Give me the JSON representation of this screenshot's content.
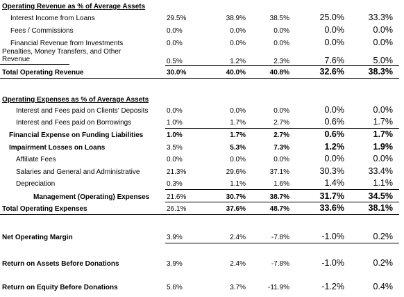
{
  "sections": [
    {
      "header": "Operating Revenue as % of Average Assets",
      "rows": [
        {
          "label": "Interest Income from Loans",
          "values": [
            "29.5%",
            "38.9%",
            "38.5%",
            "25.0%",
            "33.3%"
          ]
        },
        {
          "label": "Fees / Commissions",
          "values": [
            "0.0%",
            "0.0%",
            "0.0%",
            "0.0%",
            "0.0%"
          ]
        },
        {
          "label_lines": [
            "Financial Revenue from Investments",
            "Penalties, Money Transfers, and Other",
            "Revenue"
          ],
          "values": [
            "0.0%",
            "0.0%",
            "0.0%",
            "0.0%",
            "0.0%"
          ],
          "values2": [
            "0.5%",
            "1.2%",
            "2.3%",
            "7.6%",
            "5.0%"
          ]
        },
        {
          "label": "Total Operating Revenue",
          "values": [
            "30.0%",
            "40.0%",
            "40.8%",
            "32.6%",
            "38.3%"
          ]
        }
      ]
    },
    {
      "header": "Operating Expenses as % of Average Assets",
      "rows": [
        {
          "label": "Interest and Fees paid on Clients' Deposits",
          "values": [
            "0.0%",
            "0.0%",
            "0.0%",
            "0.0%",
            "0.0%"
          ]
        },
        {
          "label": "Interest and Fees paid on Borrowings",
          "values": [
            "1.0%",
            "1.7%",
            "2.7%",
            "0.6%",
            "1.7%"
          ]
        },
        {
          "label": "Financial Expense on Funding Liabilities",
          "values": [
            "1.0%",
            "1.7%",
            "2.7%",
            "0.6%",
            "1.7%"
          ]
        },
        {
          "label": "Impairment Losses on Loans",
          "values": [
            "3.5%",
            "5.3%",
            "7.3%",
            "1.2%",
            "1.9%"
          ]
        },
        {
          "label": "Affiliate Fees",
          "values": [
            "0.0%",
            "0.0%",
            "0.0%",
            "0.0%",
            "0.0%"
          ]
        },
        {
          "label": "Salaries and General and Administrative",
          "values": [
            "21.3%",
            "29.6%",
            "37.1%",
            "30.3%",
            "33.4%"
          ]
        },
        {
          "label": "Depreciation",
          "values": [
            "0.3%",
            "1.1%",
            "1.6%",
            "1.4%",
            "1.1%"
          ]
        },
        {
          "label": "Management (Operating) Expenses",
          "values": [
            "21.6%",
            "30.7%",
            "38.7%",
            "31.7%",
            "34.5%"
          ]
        },
        {
          "label": "Total Operating Expenses",
          "values": [
            "26.1%",
            "37.6%",
            "48.7%",
            "33.6%",
            "38.1%"
          ]
        }
      ]
    },
    {
      "rows": [
        {
          "label": "Net Operating Margin",
          "values": [
            "3.9%",
            "2.4%",
            "-7.8%",
            "-1.0%",
            "0.2%"
          ]
        },
        {
          "label": "Return on Assets Before Donations",
          "values": [
            "3.9%",
            "2.4%",
            "-7.8%",
            "-1.0%",
            "0.2%"
          ]
        },
        {
          "label": "Return on Equity Before Donations",
          "values": [
            "5.6%",
            "3.7%",
            "-11.9%",
            "-1.2%",
            "0.4%"
          ]
        }
      ]
    }
  ]
}
